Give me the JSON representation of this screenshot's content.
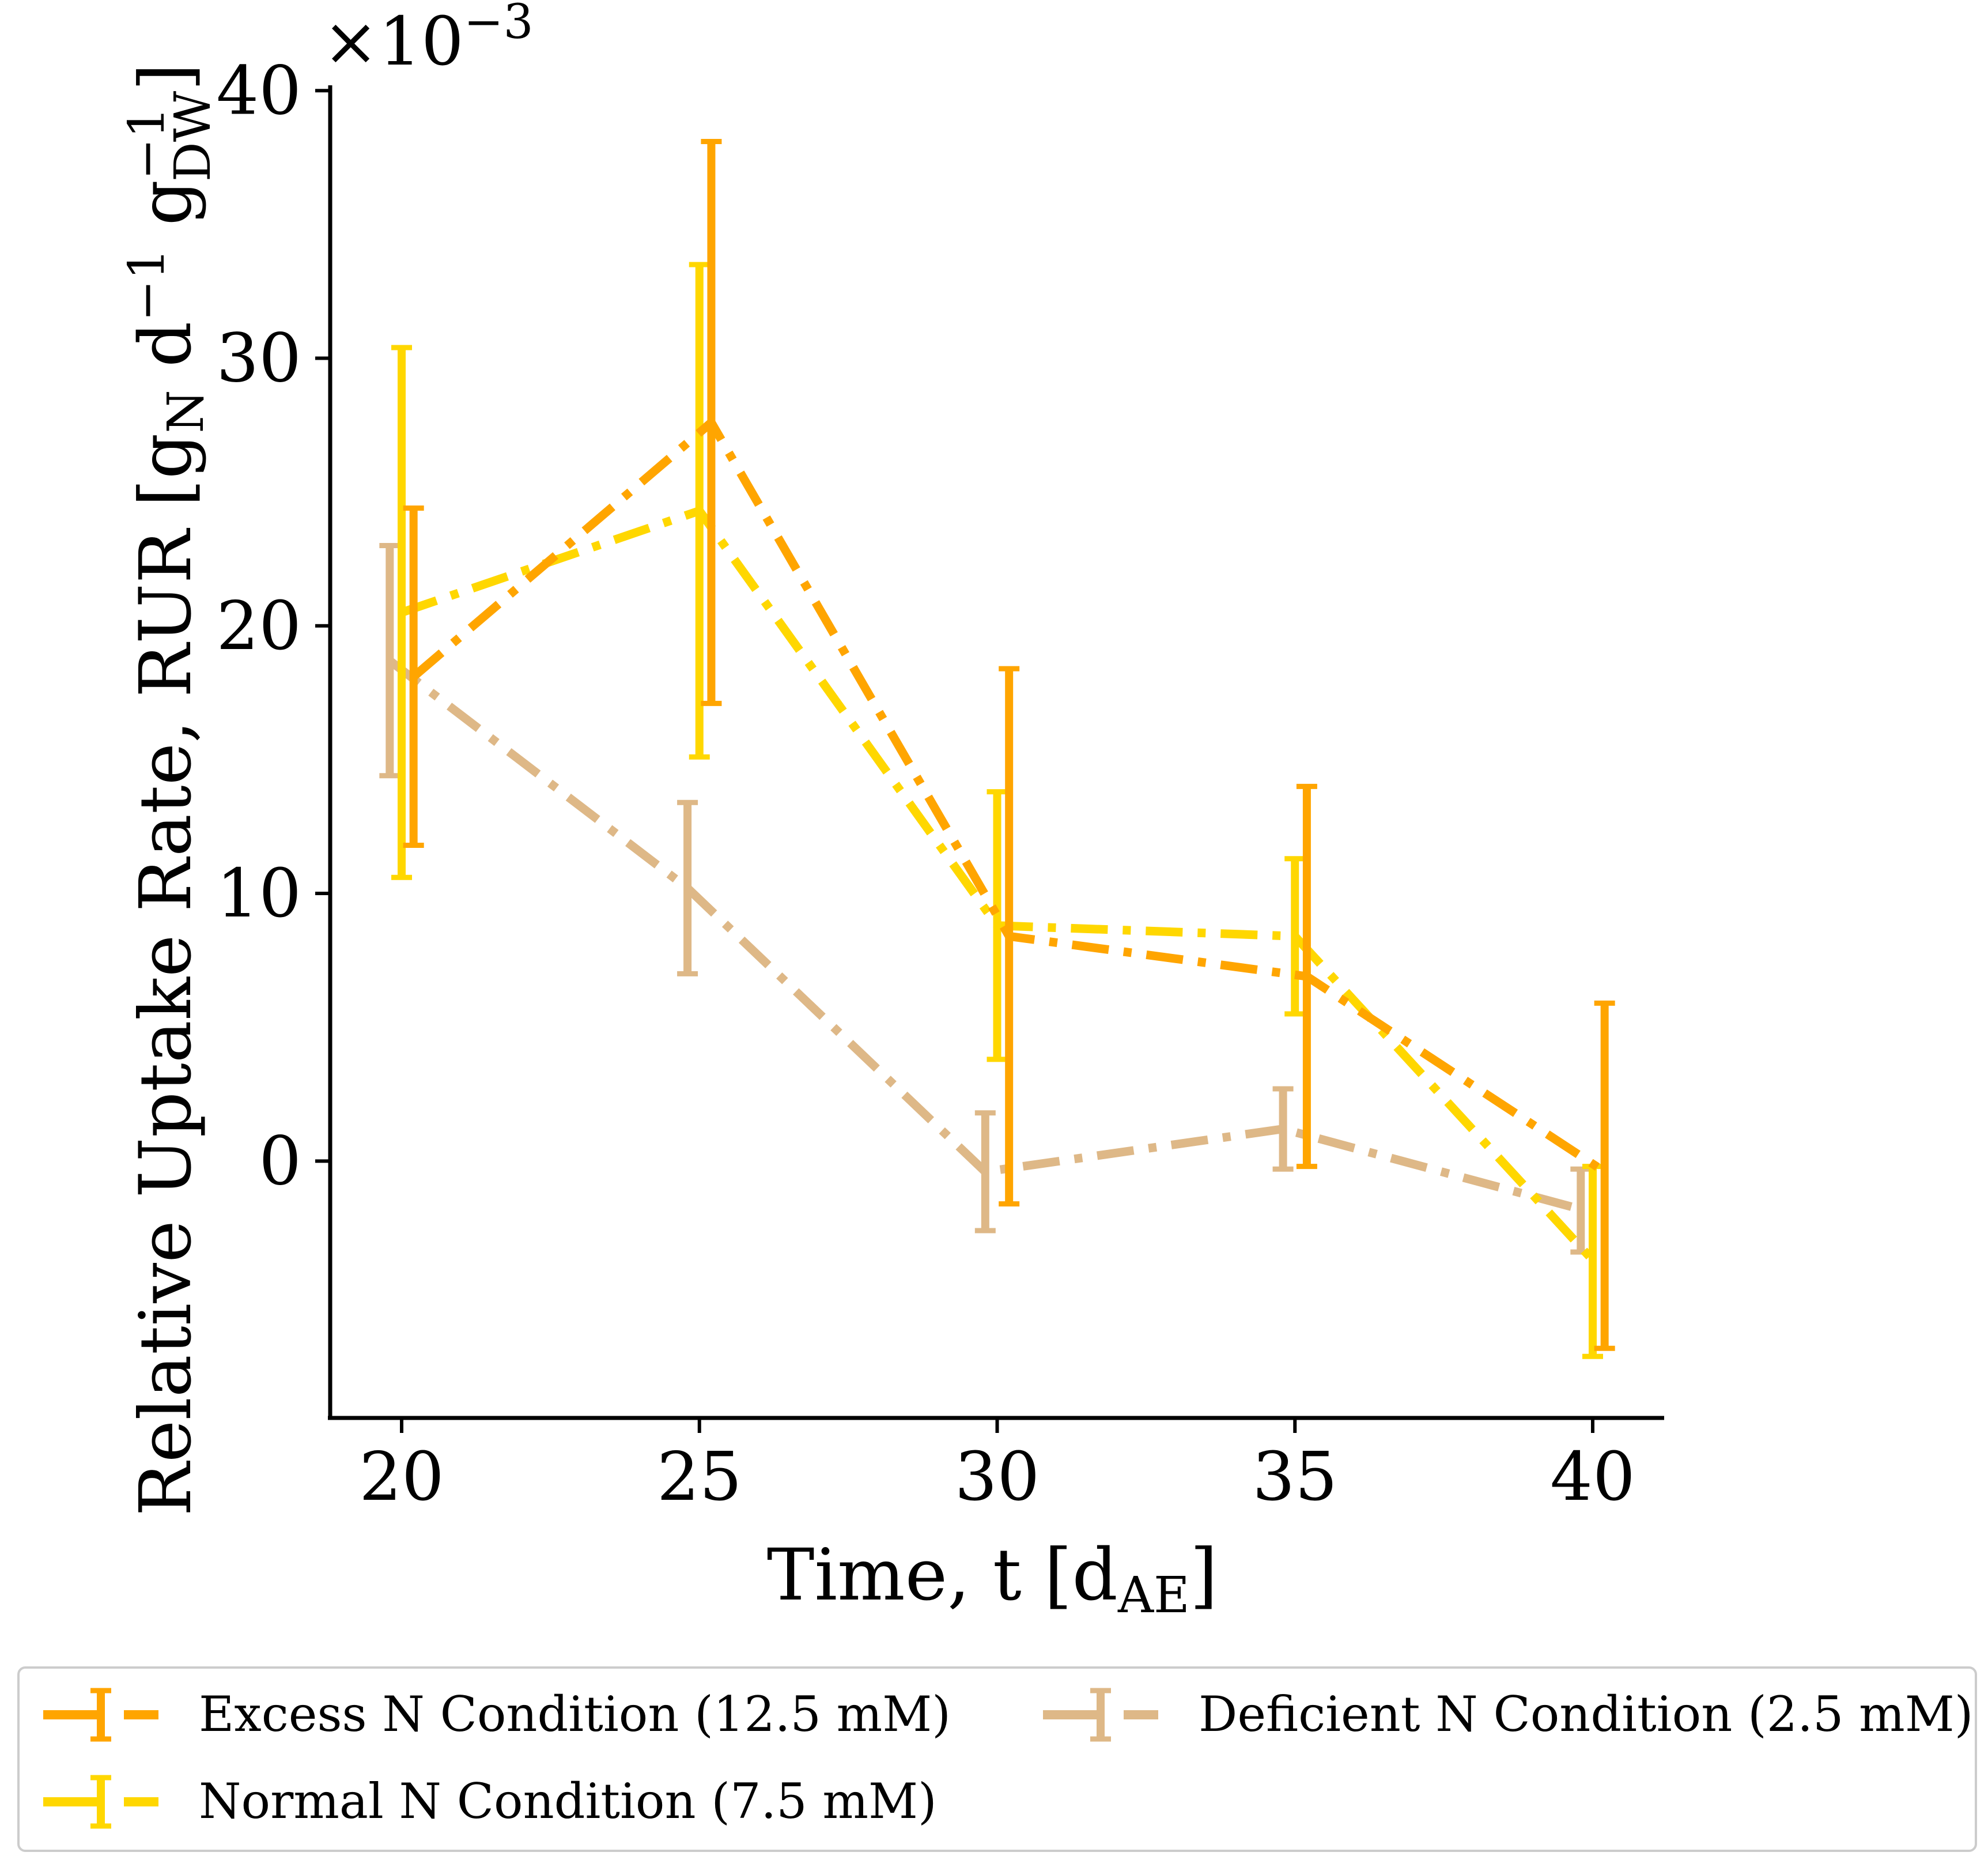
{
  "chart_data": {
    "type": "line",
    "x": [
      20,
      25,
      30,
      35,
      40
    ],
    "xlabel": "Time, t [d",
    "xlabel_sub": "AE",
    "xlabel_close": "]",
    "xticks": [
      "20",
      "25",
      "30",
      "35",
      "40"
    ],
    "xlim": [
      18.8,
      41.2
    ],
    "ylabel": "Relative Uptake Rate, RUR [g",
    "ylabel_sub1": "N",
    "ylabel_mid": " d",
    "ylabel_sup1": "−1",
    "ylabel_g2": " g",
    "ylabel_sup2": "−1",
    "ylabel_sub2": "DW",
    "ylabel_close": "]",
    "yticks": [
      "0",
      "10",
      "20",
      "30",
      "40"
    ],
    "ytick_values": [
      0,
      10,
      20,
      30,
      40
    ],
    "ylim": [
      -9.6,
      40.2
    ],
    "y_scale_note_base": "×10",
    "y_scale_note_exp": "−3",
    "line_style": "dash-dot",
    "grid": false,
    "legend_position": "bottom",
    "series": [
      {
        "name": "Excess N Condition (12.5 mM)",
        "color": "#FFA500",
        "x_offset": 0.2,
        "values": [
          18.1,
          27.6,
          8.4,
          6.9,
          -0.4
        ],
        "err_low": [
          11.8,
          17.1,
          -1.6,
          -0.2,
          -7.0
        ],
        "err_high": [
          24.4,
          38.1,
          18.4,
          14.0,
          5.9
        ]
      },
      {
        "name": "Normal N Condition (7.5 mM)",
        "color": "#FFD700",
        "x_offset": 0.0,
        "values": [
          20.5,
          24.3,
          8.8,
          8.4,
          -3.7
        ],
        "err_low": [
          10.6,
          15.1,
          3.8,
          5.5,
          -7.3
        ],
        "err_high": [
          30.4,
          33.5,
          13.8,
          11.3,
          -0.2
        ]
      },
      {
        "name": "Deficient N Condition (2.5 mM)",
        "color": "#DEB887",
        "x_offset": -0.2,
        "values": [
          18.7,
          10.2,
          -0.4,
          1.2,
          -1.8
        ],
        "err_low": [
          14.4,
          7.0,
          -2.6,
          -0.3,
          -3.4
        ],
        "err_high": [
          23.0,
          13.4,
          1.8,
          2.7,
          -0.3
        ]
      }
    ]
  }
}
